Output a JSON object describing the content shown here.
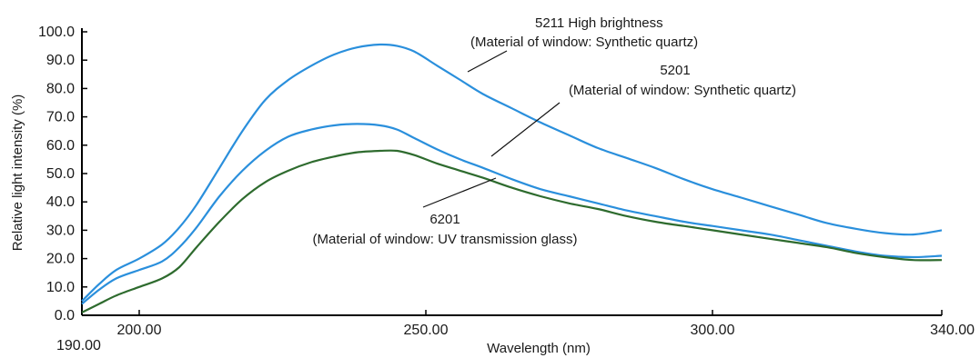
{
  "chart_data": {
    "type": "line",
    "xlabel": "Wavelength (nm)",
    "ylabel": "Relative light intensity (%)",
    "xlim": [
      190,
      340
    ],
    "ylim": [
      0,
      100
    ],
    "x_ticks": [
      {
        "value": 190,
        "label": "190.00"
      },
      {
        "value": 200,
        "label": "200.00"
      },
      {
        "value": 250,
        "label": "250.00"
      },
      {
        "value": 300,
        "label": "300.00"
      },
      {
        "value": 340,
        "label": "340.00"
      }
    ],
    "y_ticks": [
      {
        "value": 0,
        "label": "0.0"
      },
      {
        "value": 10,
        "label": "10.0"
      },
      {
        "value": 20,
        "label": "20.0"
      },
      {
        "value": 30,
        "label": "30.0"
      },
      {
        "value": 40,
        "label": "40.0"
      },
      {
        "value": 50,
        "label": "50.0"
      },
      {
        "value": 60,
        "label": "60.0"
      },
      {
        "value": 70,
        "label": "70.0"
      },
      {
        "value": 80,
        "label": "80.0"
      },
      {
        "value": 90,
        "label": "90.0"
      },
      {
        "value": 100,
        "label": "100.0"
      }
    ],
    "grid": false,
    "series": [
      {
        "id": "s5211",
        "color": "#2a8fdc",
        "x": [
          190,
          193,
          196,
          200,
          204,
          207,
          210,
          214,
          218,
          222,
          226,
          230,
          234,
          238,
          242,
          245,
          248,
          252,
          256,
          260,
          265,
          270,
          275,
          280,
          285,
          290,
          295,
          300,
          305,
          310,
          315,
          320,
          325,
          330,
          335,
          340
        ],
        "y": [
          5,
          11,
          16,
          20,
          25,
          31,
          39,
          52,
          65,
          76,
          83,
          88,
          92,
          94.5,
          95.5,
          95,
          93,
          88,
          83,
          78,
          73,
          68,
          63.5,
          59,
          55.5,
          52,
          48,
          44.5,
          41.5,
          38.5,
          35.5,
          32.5,
          30.5,
          29,
          28.5,
          30
        ]
      },
      {
        "id": "s5201",
        "color": "#2a8fdc",
        "x": [
          190,
          193,
          196,
          200,
          204,
          207,
          210,
          214,
          218,
          222,
          226,
          230,
          234,
          238,
          242,
          245,
          248,
          252,
          256,
          260,
          265,
          270,
          275,
          280,
          285,
          290,
          295,
          300,
          305,
          310,
          315,
          320,
          325,
          330,
          335,
          340
        ],
        "y": [
          4,
          9,
          13,
          16,
          19,
          24,
          31,
          42,
          51,
          58,
          63,
          65.5,
          67,
          67.5,
          67,
          65.5,
          62.5,
          58.5,
          55,
          52,
          48,
          44.5,
          42,
          39.5,
          37,
          35,
          33,
          31.5,
          30,
          28.5,
          26.5,
          24.5,
          22.5,
          21,
          20.5,
          21
        ]
      },
      {
        "id": "s6201",
        "color": "#2e6b2e",
        "x": [
          190,
          193,
          196,
          200,
          204,
          207,
          210,
          214,
          218,
          222,
          226,
          230,
          234,
          238,
          242,
          245,
          248,
          252,
          256,
          260,
          265,
          270,
          275,
          280,
          285,
          290,
          295,
          300,
          305,
          310,
          315,
          320,
          325,
          330,
          335,
          340
        ],
        "y": [
          1,
          4,
          7,
          10,
          13,
          17,
          24,
          33,
          41,
          47,
          51,
          54,
          56,
          57.5,
          58,
          58,
          56.5,
          53.5,
          51,
          48.5,
          45,
          42,
          39.5,
          37.5,
          35,
          33,
          31.5,
          30,
          28.5,
          27,
          25.5,
          24,
          22,
          20.5,
          19.5,
          19.5
        ]
      }
    ],
    "annotations": [
      {
        "id": "a5211",
        "lines": [
          "5211  High brightness",
          "(Material of window: Synthetic quartz)"
        ]
      },
      {
        "id": "a5201",
        "lines": [
          "5201",
          "(Material of window: Synthetic quartz)"
        ]
      },
      {
        "id": "a6201",
        "lines": [
          "6201",
          "(Material of window: UV transmission glass)"
        ]
      }
    ]
  }
}
